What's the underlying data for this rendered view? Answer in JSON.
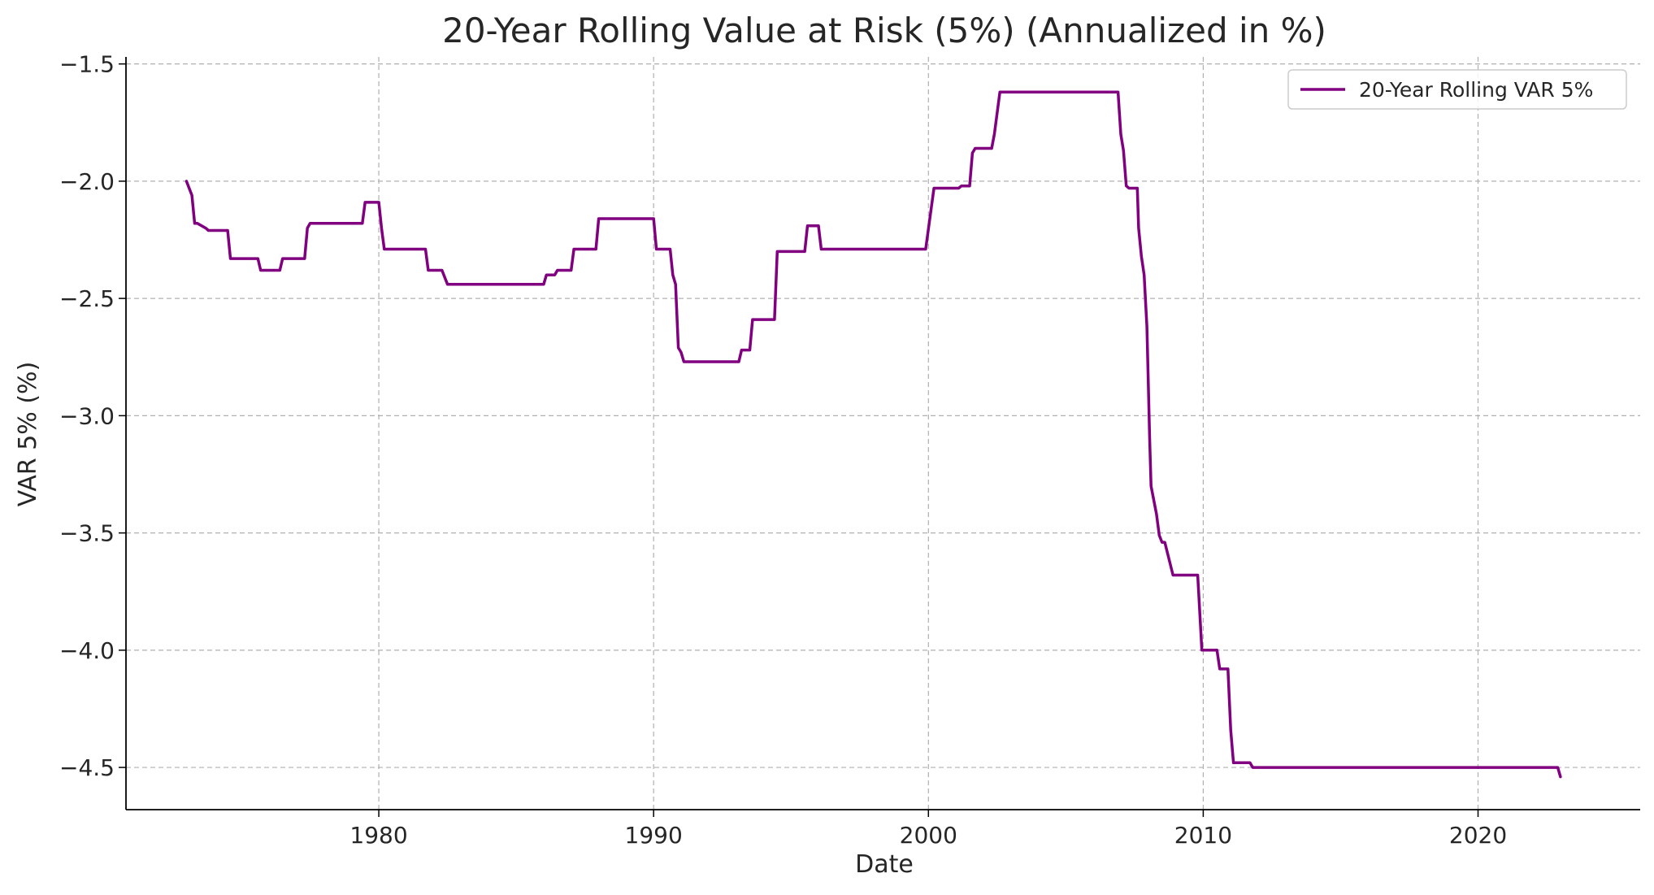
{
  "chart_data": {
    "type": "line",
    "title": "20-Year Rolling Value at Risk (5%) (Annualized in %)",
    "xlabel": "Date",
    "ylabel": "VAR 5% (%)",
    "xlim": [
      1970.8,
      2025.9
    ],
    "ylim": [
      -4.68,
      -1.47
    ],
    "x_ticks": [
      1980,
      1990,
      2000,
      2010,
      2020
    ],
    "y_ticks": [
      -1.5,
      -2.0,
      -2.5,
      -3.0,
      -3.5,
      -4.0,
      -4.5
    ],
    "y_tick_labels": [
      "−1.5",
      "−2.0",
      "−2.5",
      "−3.0",
      "−3.5",
      "−4.0",
      "−4.5"
    ],
    "grid": true,
    "legend_position": "top-right",
    "colors": {
      "line": "#800080",
      "grid": "#b0b0b0",
      "axis": "#000000"
    },
    "series": [
      {
        "name": "20-Year Rolling VAR 5%",
        "x": [
          1973.0,
          1973.2,
          1973.3,
          1973.4,
          1973.7,
          1973.8,
          1974.5,
          1974.6,
          1975.6,
          1975.7,
          1976.4,
          1976.5,
          1977.3,
          1977.4,
          1977.5,
          1979.4,
          1979.5,
          1980.0,
          1980.1,
          1980.2,
          1981.7,
          1981.8,
          1982.3,
          1982.4,
          1982.5,
          1986.0,
          1986.1,
          1986.4,
          1986.5,
          1987.0,
          1987.1,
          1987.9,
          1988.0,
          1990.0,
          1990.1,
          1990.6,
          1990.7,
          1990.8,
          1990.9,
          1991.0,
          1991.1,
          1993.1,
          1993.2,
          1993.5,
          1993.6,
          1994.4,
          1994.5,
          1995.5,
          1995.6,
          1996.0,
          1996.1,
          1999.9,
          2000.05,
          2000.2,
          2001.1,
          2001.2,
          2001.5,
          2001.6,
          2001.7,
          2002.3,
          2002.4,
          2002.6,
          2006.9,
          2007.0,
          2007.1,
          2007.2,
          2007.3,
          2007.6,
          2007.65,
          2007.75,
          2007.85,
          2007.95,
          2008.05,
          2008.1,
          2008.3,
          2008.4,
          2008.5,
          2008.6,
          2008.9,
          2009.0,
          2009.8,
          2009.95,
          2010.5,
          2010.6,
          2010.9,
          2011.0,
          2011.1,
          2011.7,
          2011.8,
          2022.9,
          2023.0
        ],
        "values": [
          -2.0,
          -2.06,
          -2.18,
          -2.18,
          -2.2,
          -2.21,
          -2.21,
          -2.33,
          -2.33,
          -2.38,
          -2.38,
          -2.33,
          -2.33,
          -2.2,
          -2.18,
          -2.18,
          -2.09,
          -2.09,
          -2.2,
          -2.29,
          -2.29,
          -2.38,
          -2.38,
          -2.41,
          -2.44,
          -2.44,
          -2.4,
          -2.4,
          -2.38,
          -2.38,
          -2.29,
          -2.29,
          -2.16,
          -2.16,
          -2.29,
          -2.29,
          -2.4,
          -2.44,
          -2.71,
          -2.73,
          -2.77,
          -2.77,
          -2.72,
          -2.72,
          -2.59,
          -2.59,
          -2.3,
          -2.3,
          -2.19,
          -2.19,
          -2.29,
          -2.29,
          -2.16,
          -2.03,
          -2.03,
          -2.02,
          -2.02,
          -1.88,
          -1.86,
          -1.86,
          -1.8,
          -1.62,
          -1.62,
          -1.8,
          -1.87,
          -2.02,
          -2.03,
          -2.03,
          -2.2,
          -2.32,
          -2.4,
          -2.62,
          -3.1,
          -3.3,
          -3.42,
          -3.51,
          -3.54,
          -3.54,
          -3.68,
          -3.68,
          -3.68,
          -4.0,
          -4.0,
          -4.08,
          -4.08,
          -4.34,
          -4.48,
          -4.48,
          -4.5,
          -4.5,
          -4.54
        ]
      }
    ]
  }
}
